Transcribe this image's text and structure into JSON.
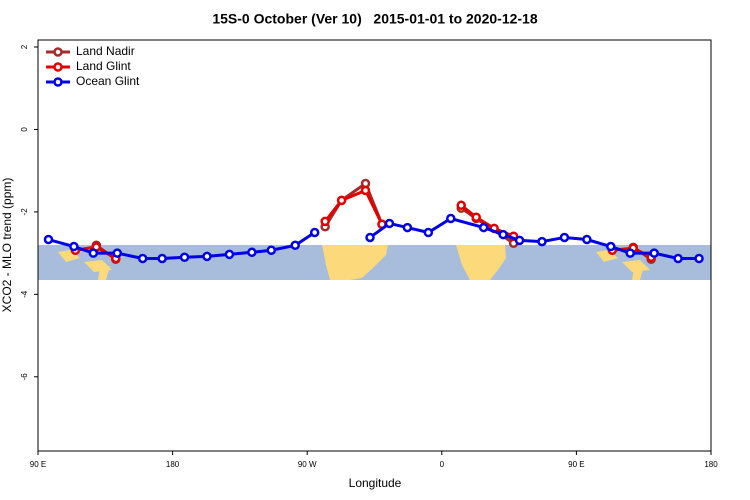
{
  "chart_data": {
    "type": "line",
    "title": "15S-0 October (Ver 10)   2015-01-01 to 2020-12-18",
    "x_label": "Longitude",
    "y_label": "XCO2 - MLO trend (ppm)",
    "xlim": [
      90,
      540
    ],
    "xticks": [
      {
        "value": 90,
        "label": "90 E"
      },
      180,
      {
        "value": 270,
        "label": "90 W"
      },
      {
        "value": 360,
        "label": "0"
      },
      {
        "value": 450,
        "label": "90 E"
      },
      {
        "value": 540,
        "label": "180"
      }
    ],
    "ylim": [
      -7.8,
      2.17
    ],
    "yticks": [
      2,
      0,
      -2,
      -4,
      -6
    ],
    "legend": "top-left",
    "series": [
      {
        "name": "Land Nadir",
        "color": "#a52a2a",
        "x": [
          129,
          142,
          null,
          282,
          293,
          309,
          320,
          null,
          373,
          383,
          408,
          null,
          488,
          500
        ],
        "values": [
          -2.81,
          -3.15,
          null,
          -2.36,
          -1.72,
          -1.31,
          -2.3,
          null,
          -1.91,
          -2.16,
          -2.76,
          null,
          -2.86,
          -3.15
        ]
      },
      {
        "name": "Land Glint",
        "color": "#e00000",
        "x": [
          115,
          129,
          142,
          null,
          282,
          293,
          309,
          320,
          null,
          373,
          383,
          395,
          408,
          null,
          474,
          488,
          500
        ],
        "values": [
          -2.93,
          -2.85,
          -3.13,
          null,
          -2.23,
          -1.72,
          -1.48,
          -2.3,
          null,
          -1.84,
          -2.13,
          -2.4,
          -2.59,
          null,
          -2.93,
          -2.88,
          -3.1
        ]
      },
      {
        "name": "Ocean Glint",
        "color": "#0000e6",
        "x": [
          97,
          114,
          127,
          143,
          160,
          173,
          188,
          203,
          218,
          233,
          246,
          262,
          275,
          null,
          312,
          325,
          337,
          351,
          366,
          388,
          401,
          412,
          427,
          442,
          457,
          473,
          486,
          502,
          518,
          532
        ],
        "values": [
          -2.67,
          -2.84,
          -3.0,
          -3.0,
          -3.13,
          -3.13,
          -3.1,
          -3.08,
          -3.03,
          -2.98,
          -2.93,
          -2.81,
          -2.5,
          null,
          -2.62,
          -2.28,
          -2.38,
          -2.5,
          -2.16,
          -2.38,
          -2.55,
          -2.69,
          -2.72,
          -2.62,
          -2.67,
          -2.84,
          -3.0,
          -3.0,
          -3.13,
          -3.13
        ]
      }
    ]
  }
}
